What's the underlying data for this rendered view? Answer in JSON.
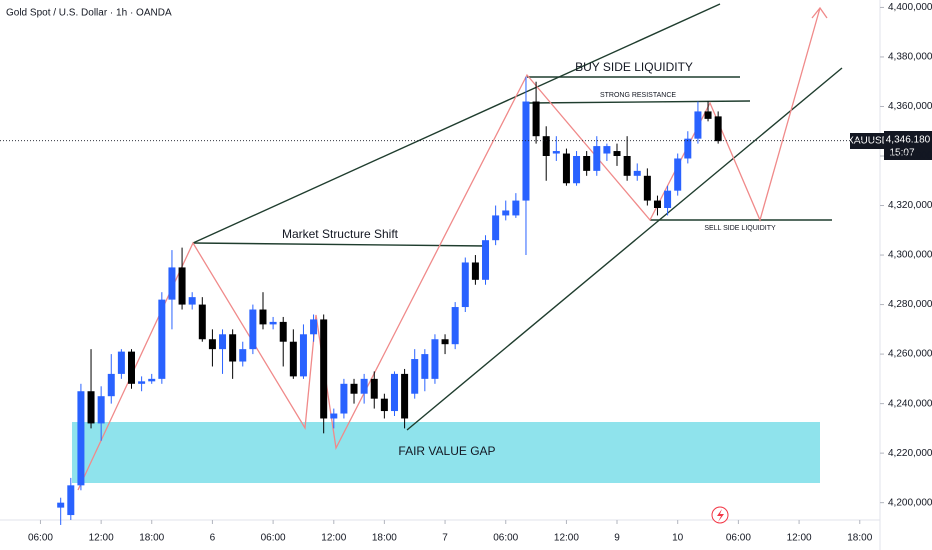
{
  "chart_data": {
    "type": "candlestick",
    "title": "Gold Spot / U.S. Dollar · 1h · OANDA",
    "symbol": "XAUUSD",
    "last_price": {
      "value": 4346.18,
      "label": "4,346.180"
    },
    "countdown": "15:07",
    "annotations": [
      "BUY SIDE LIQUIDITY",
      "STRONG RESISTANCE",
      "Market Structure Shift",
      "SELL SIDE LIQUIDITY",
      "FAIR VALUE GAP"
    ],
    "up_color": "#2962ff",
    "down_color": "#000000",
    "xlim": [
      -4,
      83
    ],
    "xticks": [
      {
        "value": 0,
        "label": "06:00"
      },
      {
        "value": 6,
        "label": "12:00"
      },
      {
        "value": 11,
        "label": "18:00"
      },
      {
        "value": 17,
        "label": "6"
      },
      {
        "value": 23,
        "label": "06:00"
      },
      {
        "value": 29,
        "label": "12:00"
      },
      {
        "value": 34,
        "label": "18:00"
      },
      {
        "value": 40,
        "label": "7"
      },
      {
        "value": 46,
        "label": "06:00"
      },
      {
        "value": 52,
        "label": "12:00"
      },
      {
        "value": 57,
        "label": "9"
      },
      {
        "value": 63,
        "label": "10"
      },
      {
        "value": 69,
        "label": "06:00"
      },
      {
        "value": 75,
        "label": "12:00"
      },
      {
        "value": 81,
        "label": "18:00"
      }
    ],
    "ylim": [
      4193,
      4403
    ],
    "yticks": [
      {
        "value": 4200,
        "label": "4,200,000"
      },
      {
        "value": 4220,
        "label": "4,220,000"
      },
      {
        "value": 4240,
        "label": "4,240,000"
      },
      {
        "value": 4260,
        "label": "4,260,000"
      },
      {
        "value": 4280,
        "label": "4,280,000"
      },
      {
        "value": 4300,
        "label": "4,300,000"
      },
      {
        "value": 4320,
        "label": "4,320,000"
      },
      {
        "value": 4340,
        "label": "4,340,000"
      },
      {
        "value": 4360,
        "label": "4,360,000"
      },
      {
        "value": 4380,
        "label": "4,380,000"
      },
      {
        "value": 4400,
        "label": "4,400,000"
      }
    ],
    "x": [
      2,
      3,
      4,
      5,
      6,
      7,
      8,
      9,
      10,
      11,
      12,
      13,
      14,
      15,
      16,
      17,
      18,
      19,
      20,
      21,
      22,
      23,
      24,
      25,
      26,
      27,
      28,
      29,
      30,
      31,
      32,
      33,
      34,
      35,
      36,
      37,
      38,
      39,
      40,
      41,
      42,
      43,
      44,
      45,
      46,
      47,
      48,
      49,
      50,
      51,
      52,
      53,
      54,
      55,
      56,
      57,
      58,
      59,
      60,
      61,
      62,
      63,
      64,
      65,
      66,
      67
    ],
    "open": [
      4198,
      4195,
      4207,
      4245,
      4232,
      4243,
      4252,
      4261,
      4248,
      4249,
      4250,
      4282,
      4295,
      4280,
      4280,
      4266,
      4262,
      4268,
      4257,
      4262,
      4278,
      4272,
      4273,
      4265,
      4251,
      4268,
      4274,
      4234,
      4236,
      4248,
      4244,
      4250,
      4242,
      4237,
      4252,
      4244,
      4250,
      4250,
      4266,
      4264,
      4279,
      4297,
      4290,
      4306,
      4316,
      4316,
      4322,
      4362,
      4348,
      4341,
      4341,
      4329,
      4340,
      4334,
      4341,
      4342,
      4340,
      4332,
      4332,
      4322,
      4319,
      4326,
      4339,
      4347,
      4358,
      4356
    ],
    "high": [
      4202,
      4210,
      4248,
      4262,
      4247,
      4260,
      4262,
      4262,
      4251,
      4252,
      4285,
      4302,
      4303,
      4285,
      4283,
      4270,
      4270,
      4270,
      4265,
      4280,
      4285,
      4275,
      4275,
      4270,
      4272,
      4276,
      4276,
      4238,
      4250,
      4250,
      4252,
      4253,
      4244,
      4253,
      4254,
      4262,
      4262,
      4268,
      4268,
      4281,
      4299,
      4300,
      4308,
      4320,
      4322,
      4325,
      4372,
      4370,
      4352,
      4348,
      4343,
      4342,
      4342,
      4348,
      4345,
      4345,
      4348,
      4337,
      4335,
      4324,
      4328,
      4341,
      4350,
      4362,
      4362,
      4358
    ],
    "low": [
      4191,
      4193,
      4205,
      4230,
      4225,
      4240,
      4250,
      4246,
      4245,
      4248,
      4248,
      4270,
      4278,
      4278,
      4265,
      4255,
      4252,
      4250,
      4255,
      4260,
      4270,
      4270,
      4255,
      4250,
      4250,
      4265,
      4228,
      4230,
      4234,
      4240,
      4240,
      4238,
      4234,
      4235,
      4230,
      4242,
      4245,
      4248,
      4260,
      4262,
      4277,
      4288,
      4288,
      4304,
      4314,
      4315,
      4300,
      4345,
      4330,
      4338,
      4328,
      4328,
      4332,
      4332,
      4338,
      4336,
      4330,
      4330,
      4320,
      4316,
      4316,
      4324,
      4337,
      4345,
      4354,
      4345
    ],
    "close": [
      4200,
      4207,
      4245,
      4232,
      4243,
      4252,
      4261,
      4248,
      4249,
      4250,
      4282,
      4295,
      4280,
      4283,
      4266,
      4262,
      4268,
      4257,
      4262,
      4278,
      4272,
      4273,
      4265,
      4251,
      4268,
      4274,
      4234,
      4236,
      4248,
      4244,
      4250,
      4242,
      4237,
      4252,
      4234,
      4258,
      4260,
      4266,
      4264,
      4279,
      4297,
      4290,
      4306,
      4316,
      4318,
      4322,
      4362,
      4348,
      4340,
      4342,
      4329,
      4340,
      4334,
      4344,
      4344,
      4340,
      4332,
      4334,
      4322,
      4319,
      4326,
      4339,
      4347,
      4358,
      4355,
      4346
    ]
  }
}
